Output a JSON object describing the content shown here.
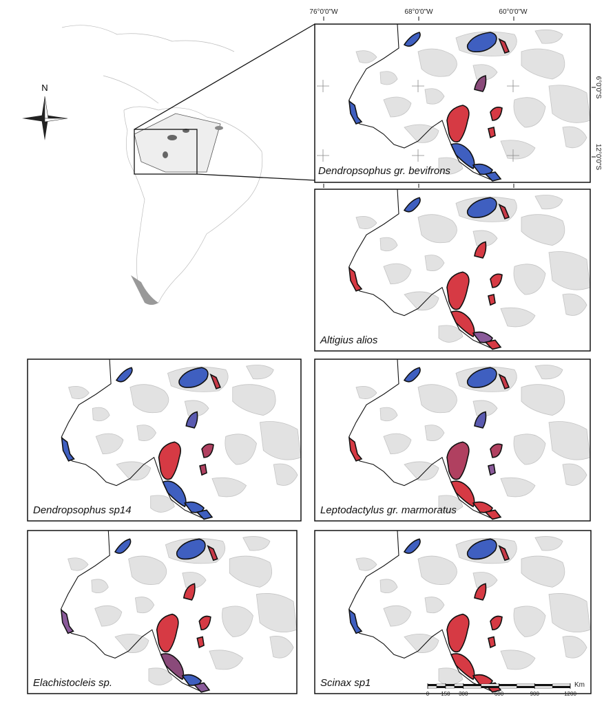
{
  "overview": {
    "north": "N"
  },
  "coordinates": {
    "longitudes": [
      "76°0'0\"W",
      "68°0'0\"W",
      "60°0'0\"W"
    ],
    "latitudes": [
      "6°0'0\"S",
      "12°0'0\"S"
    ]
  },
  "panels": [
    {
      "label": "Dendropsophus gr. bevifrons"
    },
    {
      "label": "Altigius alios"
    },
    {
      "label": "Dendropsophus sp14"
    },
    {
      "label": "Leptodactylus gr. marmoratus"
    },
    {
      "label": "Elachistocleis sp."
    },
    {
      "label": "Scinax sp1"
    }
  ],
  "scale_bar": {
    "labels": [
      0,
      150,
      300,
      600,
      900,
      1200
    ],
    "unit": "Km"
  }
}
